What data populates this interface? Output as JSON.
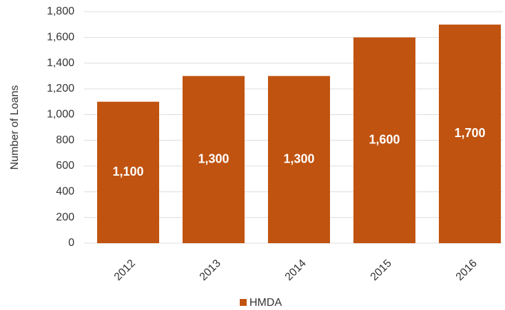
{
  "chart_data": {
    "type": "bar",
    "y_label": "Number of Loans",
    "categories": [
      "2012",
      "2013",
      "2014",
      "2015",
      "2016"
    ],
    "series": [
      {
        "name": "HMDA",
        "color": "#c0530f",
        "values": [
          1100,
          1300,
          1300,
          1600,
          1700
        ],
        "value_labels": [
          "1,100",
          "1,300",
          "1,300",
          "1,600",
          "1,700"
        ]
      }
    ],
    "ylim": [
      0,
      1800
    ],
    "yticks": [
      0,
      200,
      400,
      600,
      800,
      {
        "value": 1000,
        "label": "1,000"
      },
      {
        "value": 1200,
        "label": "1,200"
      },
      {
        "value": 1400,
        "label": "1,400"
      },
      {
        "value": 1600,
        "label": "1,600"
      },
      {
        "value": 1800,
        "label": "1,800"
      }
    ],
    "grid": true,
    "legend": "bottom"
  }
}
